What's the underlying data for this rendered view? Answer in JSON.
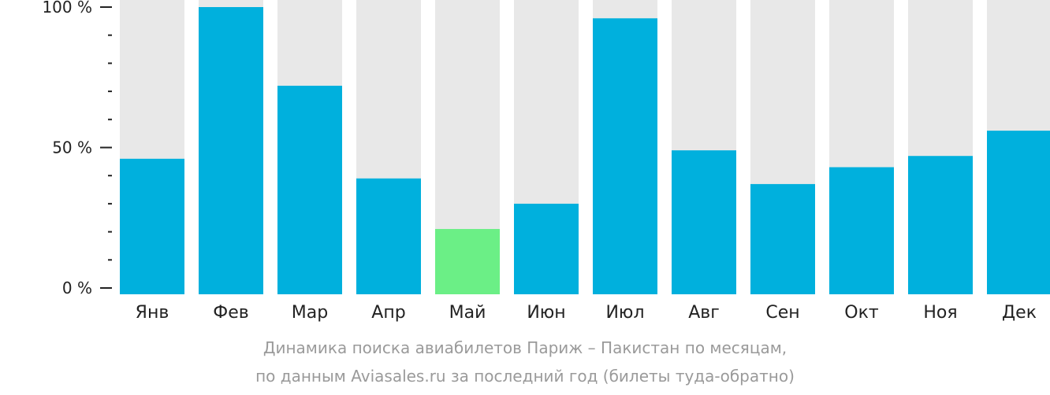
{
  "chart_data": {
    "type": "bar",
    "categories": [
      "Янв",
      "Фев",
      "Мар",
      "Апр",
      "Май",
      "Июн",
      "Июл",
      "Авг",
      "Сен",
      "Окт",
      "Ноя",
      "Дек"
    ],
    "values": [
      46,
      100,
      72,
      39,
      21,
      30,
      96,
      49,
      37,
      43,
      47,
      56
    ],
    "ylim": [
      0,
      100
    ],
    "yticks": [
      {
        "value": 0,
        "label": "0 %"
      },
      {
        "value": 50,
        "label": "50 %"
      },
      {
        "value": 100,
        "label": "100 %"
      }
    ],
    "minor_tick_step": 10,
    "highlight_index": 4,
    "colors": {
      "bar": "#00b0dd",
      "highlight": "#6bef86",
      "background_bar": "#e8e8e8",
      "axis": "#222222"
    }
  },
  "caption": {
    "line1": "Динамика поиска авиабилетов Париж – Пакистан по месяцам,",
    "line2": "по данным Aviasales.ru за последний год (билеты туда-обратно)"
  }
}
